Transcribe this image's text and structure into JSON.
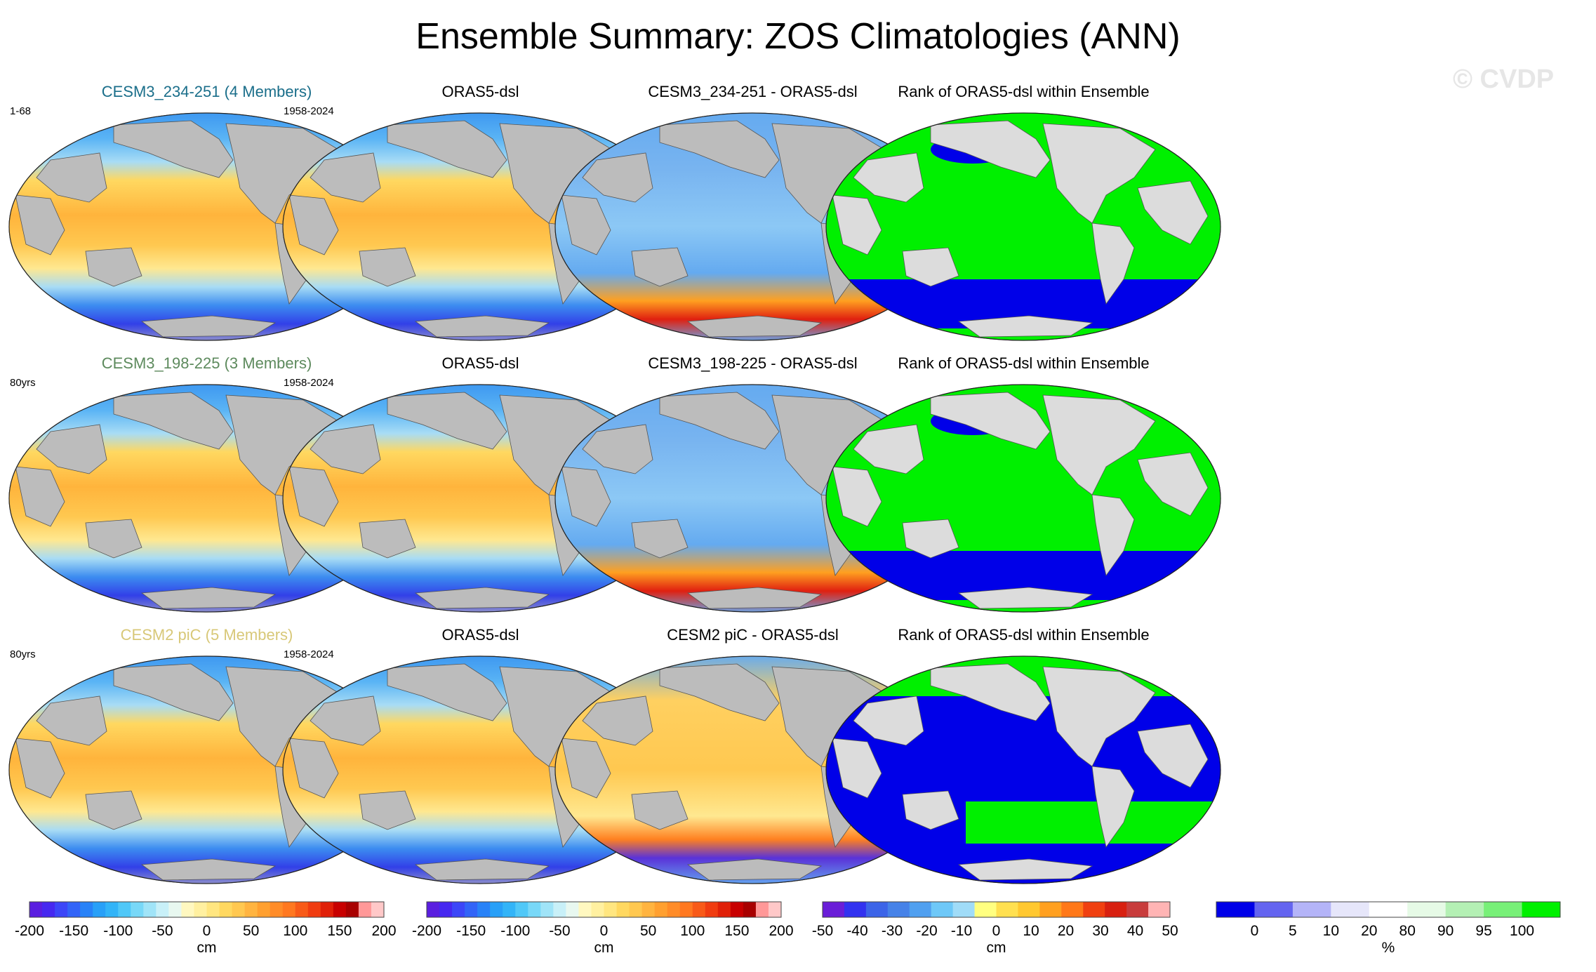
{
  "title": "Ensemble Summary: ZOS Climatologies (ANN)",
  "watermark": "© CVDP",
  "colors": {
    "land": "#bcbcbc",
    "model_1_title": "#1a6e8a",
    "model_2_title": "#5d8a5d",
    "model_3_title": "#d8c878",
    "rank_low": "#0000e8",
    "rank_high": "#00f000"
  },
  "rows": [
    {
      "model": {
        "title": "CESM3_234-251 (4 Members)",
        "years": "1-68"
      },
      "obs": {
        "title": "ORAS5-dsl",
        "years": "1958-2024"
      },
      "diff": {
        "title": "CESM3_234-251 - ORAS5-dsl"
      },
      "rank": {
        "title": "Rank of ORAS5-dsl within Ensemble"
      }
    },
    {
      "model": {
        "title": "CESM3_198-225 (3 Members)",
        "years": "80yrs"
      },
      "obs": {
        "title": "ORAS5-dsl",
        "years": "1958-2024"
      },
      "diff": {
        "title": "CESM3_198-225 - ORAS5-dsl"
      },
      "rank": {
        "title": "Rank of ORAS5-dsl within Ensemble"
      }
    },
    {
      "model": {
        "title": "CESM2 piC (5 Members)",
        "years": "80yrs"
      },
      "obs": {
        "title": "ORAS5-dsl",
        "years": "1958-2024"
      },
      "diff": {
        "title": "CESM2 piC - ORAS5-dsl"
      },
      "rank": {
        "title": "Rank of ORAS5-dsl within Ensemble"
      }
    }
  ],
  "colorbars": [
    {
      "unit": "cm",
      "ticks": [
        "-200",
        "-150",
        "-100",
        "-50",
        "0",
        "50",
        "100",
        "150",
        "200"
      ],
      "colors": [
        "#5a1ee0",
        "#4628f0",
        "#3c46f8",
        "#3264f8",
        "#2882f8",
        "#28a0f8",
        "#32b4f8",
        "#50c8f8",
        "#78d8f8",
        "#a0e4f8",
        "#c8f0f8",
        "#e8f8f0",
        "#fff8c0",
        "#fff0a0",
        "#ffe680",
        "#ffd860",
        "#ffc850",
        "#ffb440",
        "#ffa030",
        "#ff8c28",
        "#ff7820",
        "#f85a18",
        "#f03c10",
        "#e02008",
        "#c80000",
        "#a80000",
        "#ff9898",
        "#ffc8c8"
      ]
    },
    {
      "unit": "cm",
      "ticks": [
        "-200",
        "-150",
        "-100",
        "-50",
        "0",
        "50",
        "100",
        "150",
        "200"
      ],
      "colors": [
        "#5a1ee0",
        "#4628f0",
        "#3c46f8",
        "#3264f8",
        "#2882f8",
        "#28a0f8",
        "#32b4f8",
        "#50c8f8",
        "#78d8f8",
        "#a0e4f8",
        "#c8f0f8",
        "#e8f8f0",
        "#fff8c0",
        "#fff0a0",
        "#ffe680",
        "#ffd860",
        "#ffc850",
        "#ffb440",
        "#ffa030",
        "#ff8c28",
        "#ff7820",
        "#f85a18",
        "#f03c10",
        "#e02008",
        "#c80000",
        "#a80000",
        "#ff9898",
        "#ffc8c8"
      ]
    },
    {
      "unit": "cm",
      "ticks": [
        "-50",
        "-40",
        "-30",
        "-20",
        "-10",
        "0",
        "10",
        "20",
        "30",
        "40",
        "50"
      ],
      "colors": [
        "#6a1ed8",
        "#3232f0",
        "#3c64e8",
        "#4682e8",
        "#50a0f0",
        "#6ec8f8",
        "#a0dcf8",
        "#ffff80",
        "#ffe050",
        "#ffc830",
        "#ffa020",
        "#ff7818",
        "#f04010",
        "#d82010",
        "#c83c3c",
        "#ffb4b4"
      ]
    },
    {
      "unit": "%",
      "ticks": [
        "0",
        "5",
        "10",
        "20",
        "80",
        "90",
        "95",
        "100"
      ],
      "colors": [
        "#0000e8",
        "#6464f0",
        "#b4b4f8",
        "#e6e6fa",
        "#ffffff",
        "#e6fae6",
        "#b4f0b4",
        "#78f078",
        "#00f000"
      ]
    }
  ]
}
